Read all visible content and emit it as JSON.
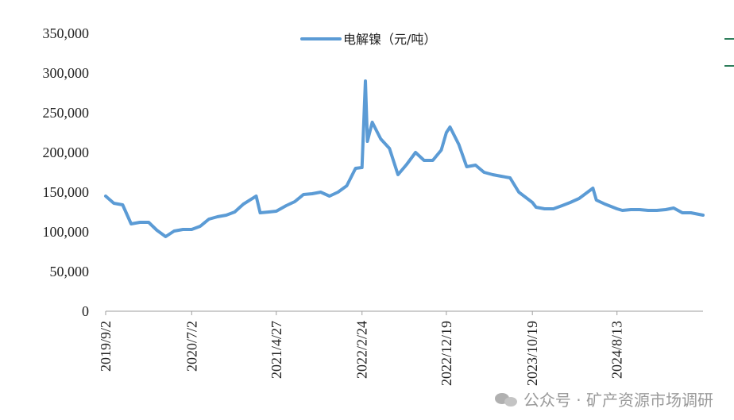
{
  "chart_data": {
    "type": "line",
    "title": "",
    "xlabel": "",
    "ylabel": "",
    "ylim": [
      0,
      350000
    ],
    "y_ticks": [
      "0",
      "50,000",
      "100,000",
      "150,000",
      "200,000",
      "250,000",
      "300,000",
      "350,000"
    ],
    "x_tick_labels": [
      "2019/9/2",
      "2020/7/2",
      "2021/4/27",
      "2022/2/24",
      "2022/12/19",
      "2023/10/19",
      "2024/8/13"
    ],
    "x_range": [
      "2019/9/2",
      "2025/6/13"
    ],
    "legend": "top-center",
    "grid": false,
    "series": [
      {
        "name": "电解镍（元/吨）",
        "color": "#5b9bd5",
        "x": [
          "2019/9/2",
          "2019/10/1",
          "2019/11/1",
          "2019/12/1",
          "2020/1/1",
          "2020/2/1",
          "2020/3/1",
          "2020/4/1",
          "2020/5/1",
          "2020/6/1",
          "2020/7/2",
          "2020/8/1",
          "2020/9/1",
          "2020/10/1",
          "2020/11/1",
          "2020/12/1",
          "2021/1/1",
          "2021/2/15",
          "2021/3/1",
          "2021/4/1",
          "2021/4/27",
          "2021/6/1",
          "2021/7/1",
          "2021/8/1",
          "2021/9/1",
          "2021/10/1",
          "2021/11/1",
          "2021/12/1",
          "2022/1/1",
          "2022/2/1",
          "2022/2/24",
          "2022/3/8",
          "2022/3/15",
          "2022/4/1",
          "2022/5/1",
          "2022/6/1",
          "2022/7/1",
          "2022/8/1",
          "2022/9/1",
          "2022/10/1",
          "2022/11/1",
          "2022/12/1",
          "2022/12/19",
          "2023/1/1",
          "2023/2/1",
          "2023/3/1",
          "2023/4/1",
          "2023/5/1",
          "2023/6/1",
          "2023/7/1",
          "2023/8/1",
          "2023/9/1",
          "2023/10/19",
          "2023/11/1",
          "2023/12/1",
          "2024/1/1",
          "2024/2/1",
          "2024/3/1",
          "2024/4/1",
          "2024/5/20",
          "2024/6/1",
          "2024/7/1",
          "2024/8/13",
          "2024/9/1",
          "2024/10/1",
          "2024/11/1",
          "2024/12/1",
          "2025/1/1",
          "2025/2/1",
          "2025/3/1",
          "2025/4/1",
          "2025/5/1",
          "2025/6/13"
        ],
        "values": [
          145000,
          136000,
          134000,
          110000,
          112000,
          112000,
          102000,
          94000,
          101000,
          103000,
          103000,
          107000,
          116000,
          119000,
          121000,
          125000,
          135000,
          145000,
          124000,
          125000,
          126000,
          133000,
          138000,
          147000,
          148000,
          150000,
          145000,
          150000,
          158000,
          180000,
          181000,
          290000,
          214000,
          238000,
          217000,
          205000,
          172000,
          185000,
          200000,
          190000,
          190000,
          203000,
          225000,
          232000,
          210000,
          182000,
          184000,
          175000,
          172000,
          170000,
          168000,
          150000,
          137000,
          131000,
          129000,
          129000,
          133000,
          137000,
          142000,
          155000,
          140000,
          135000,
          129000,
          127000,
          128000,
          128000,
          127000,
          127000,
          128000,
          130000,
          124000,
          124000,
          121000
        ]
      }
    ]
  },
  "watermark": {
    "text": "公众号 · 矿产资源市场调研",
    "icon": "wechat-icon"
  }
}
